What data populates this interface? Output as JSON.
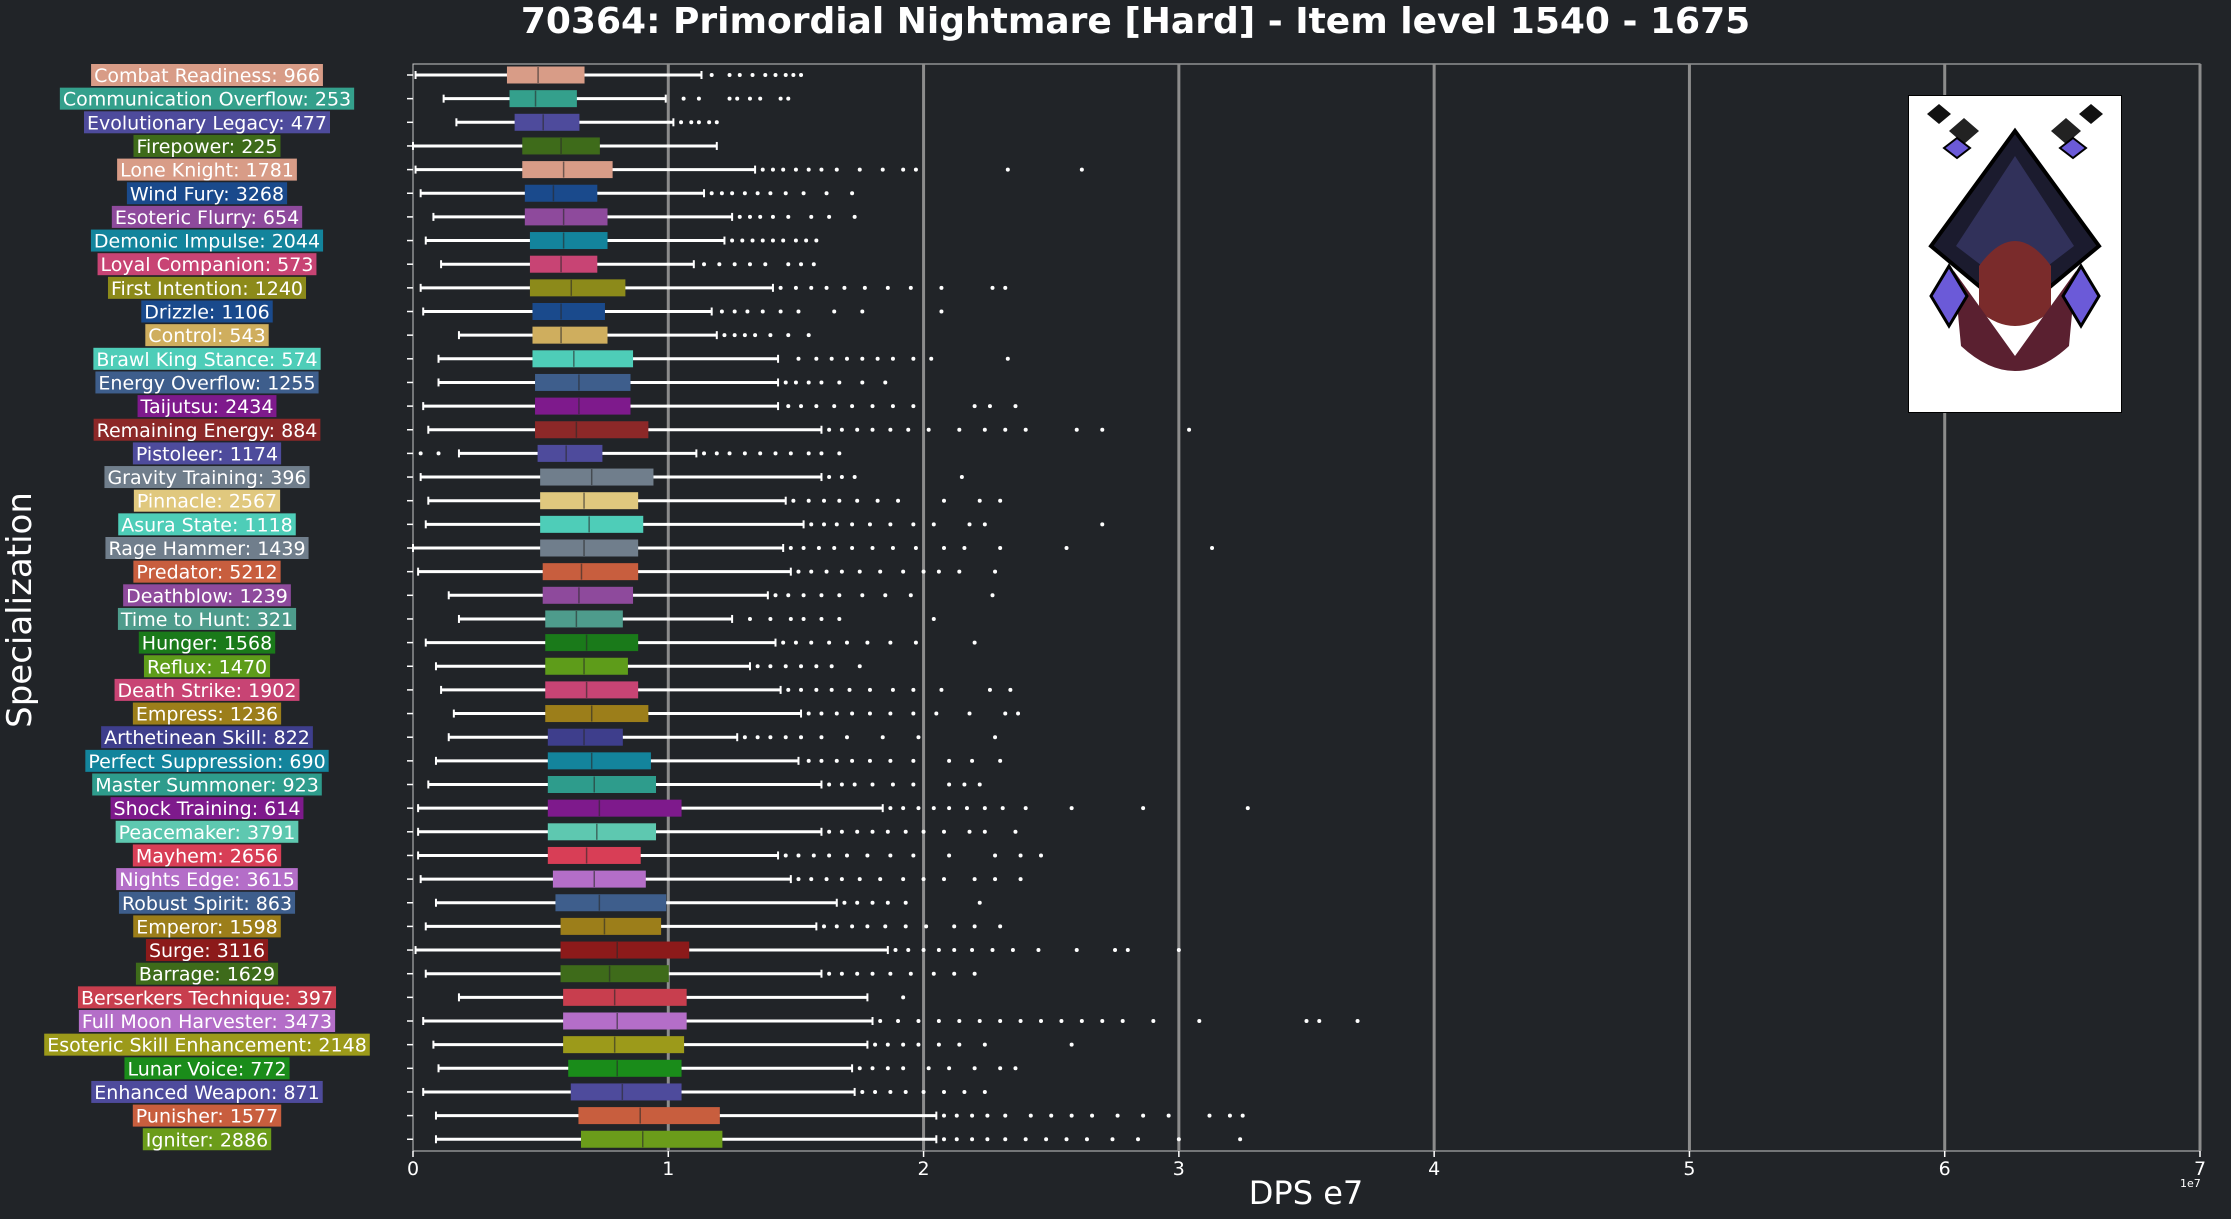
{
  "title": "70364: Primordial Nightmare [Hard] - Item level 1540 - 1675",
  "xlabel": "DPS e7",
  "ylabel": "Specialization",
  "axis_offset": "1e7",
  "colors": {
    "background": "#212428",
    "text": "#ffffff",
    "grid": "#8c8c8c"
  },
  "chart_data": {
    "type": "box",
    "orientation": "horizontal",
    "xlim": [
      0,
      7
    ],
    "xticks": [
      0,
      1,
      2,
      3,
      4,
      5,
      6,
      7
    ],
    "grid": "x-major",
    "categories": [
      {
        "label": "Combat Readiness: 966",
        "color": "#d89c87",
        "stats": [
          0.01,
          0.37,
          0.49,
          0.67,
          1.13
        ],
        "fliers": [
          1.17,
          1.24,
          1.28,
          1.33,
          1.38,
          1.42,
          1.46,
          1.49,
          1.52
        ]
      },
      {
        "label": "Communication Overflow: 253",
        "color": "#34a08c",
        "stats": [
          0.12,
          0.38,
          0.48,
          0.64,
          0.99
        ],
        "fliers": [
          1.06,
          1.12,
          1.24,
          1.27,
          1.32,
          1.36,
          1.44,
          1.47
        ]
      },
      {
        "label": "Evolutionary Legacy: 477",
        "color": "#4e4b9c",
        "stats": [
          0.17,
          0.4,
          0.51,
          0.65,
          1.02
        ],
        "fliers": [
          1.05,
          1.09,
          1.12,
          1.16,
          1.19
        ]
      },
      {
        "label": "Firepower: 225",
        "color": "#3e6b1a",
        "stats": [
          0.0,
          0.43,
          0.58,
          0.73,
          1.19
        ],
        "fliers": []
      },
      {
        "label": "Lone Knight: 1781",
        "color": "#d89c87",
        "stats": [
          0.01,
          0.43,
          0.59,
          0.78,
          1.34
        ],
        "fliers": [
          1.37,
          1.41,
          1.45,
          1.5,
          1.55,
          1.6,
          1.66,
          1.75,
          1.84,
          1.92,
          1.97,
          2.33,
          2.62
        ]
      },
      {
        "label": "Wind Fury: 3268",
        "color": "#1a4a8c",
        "stats": [
          0.03,
          0.44,
          0.55,
          0.72,
          1.14
        ],
        "fliers": [
          1.17,
          1.21,
          1.25,
          1.3,
          1.35,
          1.4,
          1.46,
          1.53,
          1.62,
          1.72
        ]
      },
      {
        "label": "Esoteric Flurry: 654",
        "color": "#8e4a9c",
        "stats": [
          0.08,
          0.44,
          0.59,
          0.76,
          1.25
        ],
        "fliers": [
          1.28,
          1.32,
          1.36,
          1.41,
          1.47,
          1.56,
          1.63,
          1.73
        ]
      },
      {
        "label": "Demonic Impulse: 2044",
        "color": "#13849c",
        "stats": [
          0.05,
          0.46,
          0.59,
          0.76,
          1.22
        ],
        "fliers": [
          1.25,
          1.29,
          1.33,
          1.37,
          1.41,
          1.45,
          1.5,
          1.54,
          1.58
        ]
      },
      {
        "label": "Loyal Companion: 573",
        "color": "#c84474",
        "stats": [
          0.11,
          0.46,
          0.58,
          0.72,
          1.1
        ],
        "fliers": [
          1.14,
          1.2,
          1.26,
          1.32,
          1.38,
          1.47,
          1.52,
          1.57
        ]
      },
      {
        "label": "First Intention: 1240",
        "color": "#8c8a1a",
        "stats": [
          0.03,
          0.46,
          0.62,
          0.83,
          1.41
        ],
        "fliers": [
          1.44,
          1.5,
          1.56,
          1.62,
          1.69,
          1.77,
          1.86,
          1.95,
          2.07,
          2.27,
          2.32
        ]
      },
      {
        "label": "Drizzle: 1106",
        "color": "#1a4a8c",
        "stats": [
          0.04,
          0.47,
          0.58,
          0.75,
          1.17
        ],
        "fliers": [
          1.21,
          1.26,
          1.31,
          1.37,
          1.44,
          1.51,
          1.65,
          1.76,
          2.07
        ]
      },
      {
        "label": "Control: 543",
        "color": "#cfae5e",
        "stats": [
          0.18,
          0.47,
          0.58,
          0.76,
          1.19
        ],
        "fliers": [
          1.22,
          1.26,
          1.3,
          1.34,
          1.4,
          1.47,
          1.55
        ]
      },
      {
        "label": "Brawl King Stance: 574",
        "color": "#4ecdb8",
        "stats": [
          0.1,
          0.47,
          0.63,
          0.86,
          1.43
        ],
        "fliers": [
          1.51,
          1.58,
          1.64,
          1.7,
          1.76,
          1.82,
          1.88,
          1.96,
          2.03,
          2.33
        ]
      },
      {
        "label": "Energy Overflow: 1255",
        "color": "#3e5e8c",
        "stats": [
          0.1,
          0.48,
          0.65,
          0.85,
          1.43
        ],
        "fliers": [
          1.46,
          1.5,
          1.55,
          1.6,
          1.67,
          1.76,
          1.85
        ]
      },
      {
        "label": "Taijutsu: 2434",
        "color": "#7e1a8c",
        "stats": [
          0.04,
          0.48,
          0.65,
          0.85,
          1.43
        ],
        "fliers": [
          1.47,
          1.52,
          1.58,
          1.65,
          1.72,
          1.8,
          1.88,
          1.96,
          2.2,
          2.26,
          2.36
        ]
      },
      {
        "label": "Remaining Energy: 884",
        "color": "#8c2828",
        "stats": [
          0.06,
          0.48,
          0.64,
          0.92,
          1.6
        ],
        "fliers": [
          1.63,
          1.68,
          1.74,
          1.8,
          1.87,
          1.94,
          2.02,
          2.14,
          2.24,
          2.32,
          2.4,
          2.6,
          2.7,
          3.04
        ]
      },
      {
        "label": "Pistoleer: 1174",
        "color": "#4e4b9c",
        "stats": [
          0.18,
          0.49,
          0.6,
          0.74,
          1.11
        ],
        "fliers": [
          0.03,
          0.1,
          1.14,
          1.19,
          1.24,
          1.3,
          1.36,
          1.42,
          1.48,
          1.55,
          1.6,
          1.67
        ]
      },
      {
        "label": "Gravity Training: 396",
        "color": "#707e8c",
        "stats": [
          0.03,
          0.5,
          0.7,
          0.94,
          1.6
        ],
        "fliers": [
          1.63,
          1.68,
          1.73,
          2.15
        ]
      },
      {
        "label": "Pinnacle: 2567",
        "color": "#e0c87e",
        "stats": [
          0.06,
          0.5,
          0.67,
          0.88,
          1.46
        ],
        "fliers": [
          1.49,
          1.55,
          1.61,
          1.67,
          1.74,
          1.82,
          1.9,
          2.08,
          2.22,
          2.3
        ]
      },
      {
        "label": "Asura State: 1118",
        "color": "#4ecdb8",
        "stats": [
          0.05,
          0.5,
          0.69,
          0.9,
          1.53
        ],
        "fliers": [
          1.56,
          1.61,
          1.66,
          1.72,
          1.79,
          1.87,
          1.96,
          2.04,
          2.18,
          2.24,
          2.7
        ]
      },
      {
        "label": "Rage Hammer: 1439",
        "color": "#707e8c",
        "stats": [
          0.0,
          0.5,
          0.67,
          0.88,
          1.45
        ],
        "fliers": [
          1.48,
          1.53,
          1.59,
          1.65,
          1.72,
          1.8,
          1.88,
          1.97,
          2.08,
          2.16,
          2.3,
          2.56,
          3.13
        ]
      },
      {
        "label": "Predator: 5212",
        "color": "#c85e3e",
        "stats": [
          0.02,
          0.51,
          0.66,
          0.88,
          1.48
        ],
        "fliers": [
          1.51,
          1.56,
          1.62,
          1.68,
          1.75,
          1.83,
          1.92,
          2.0,
          2.06,
          2.14,
          2.28
        ]
      },
      {
        "label": "Deathblow: 1239",
        "color": "#8e4a9c",
        "stats": [
          0.14,
          0.51,
          0.65,
          0.86,
          1.39
        ],
        "fliers": [
          1.42,
          1.47,
          1.53,
          1.6,
          1.67,
          1.76,
          1.85,
          1.95,
          2.27
        ]
      },
      {
        "label": "Time to Hunt: 321",
        "color": "#4e9c8c",
        "stats": [
          0.18,
          0.52,
          0.64,
          0.82,
          1.25
        ],
        "fliers": [
          1.32,
          1.4,
          1.48,
          1.53,
          1.6,
          1.67,
          2.04
        ]
      },
      {
        "label": "Hunger: 1568",
        "color": "#1a7a1a",
        "stats": [
          0.05,
          0.52,
          0.68,
          0.88,
          1.42
        ],
        "fliers": [
          1.45,
          1.5,
          1.56,
          1.63,
          1.7,
          1.78,
          1.87,
          1.97,
          2.2
        ]
      },
      {
        "label": "Reflux: 1470",
        "color": "#5e9c1a",
        "stats": [
          0.09,
          0.52,
          0.67,
          0.84,
          1.32
        ],
        "fliers": [
          1.35,
          1.4,
          1.46,
          1.52,
          1.58,
          1.64,
          1.75
        ]
      },
      {
        "label": "Death Strike: 1902",
        "color": "#c84474",
        "stats": [
          0.11,
          0.52,
          0.68,
          0.88,
          1.44
        ],
        "fliers": [
          1.47,
          1.52,
          1.58,
          1.64,
          1.71,
          1.79,
          1.88,
          1.96,
          2.07,
          2.26,
          2.34
        ]
      },
      {
        "label": "Empress: 1236",
        "color": "#9c7e1a",
        "stats": [
          0.16,
          0.52,
          0.7,
          0.92,
          1.52
        ],
        "fliers": [
          1.55,
          1.6,
          1.66,
          1.72,
          1.79,
          1.87,
          1.96,
          2.05,
          2.18,
          2.32,
          2.37
        ]
      },
      {
        "label": "Arthetinean Skill: 822",
        "color": "#3e3e8c",
        "stats": [
          0.14,
          0.53,
          0.67,
          0.82,
          1.27
        ],
        "fliers": [
          1.3,
          1.35,
          1.4,
          1.46,
          1.52,
          1.6,
          1.7,
          1.84,
          1.98,
          2.28
        ]
      },
      {
        "label": "Perfect Suppression: 690",
        "color": "#13849c",
        "stats": [
          0.09,
          0.53,
          0.7,
          0.93,
          1.51
        ],
        "fliers": [
          1.55,
          1.6,
          1.66,
          1.72,
          1.79,
          1.87,
          1.96,
          2.1,
          2.19,
          2.3
        ]
      },
      {
        "label": "Master Summoner: 923",
        "color": "#2e9c8c",
        "stats": [
          0.06,
          0.53,
          0.71,
          0.95,
          1.6
        ],
        "fliers": [
          1.63,
          1.68,
          1.73,
          1.8,
          1.88,
          1.96,
          2.1,
          2.16,
          2.22
        ]
      },
      {
        "label": "Shock Training: 614",
        "color": "#7e1a8c",
        "stats": [
          0.02,
          0.53,
          0.73,
          1.05,
          1.84
        ],
        "fliers": [
          1.87,
          1.92,
          1.98,
          2.04,
          2.1,
          2.17,
          2.24,
          2.31,
          2.4,
          2.58,
          2.86,
          3.27
        ]
      },
      {
        "label": "Peacemaker: 3791",
        "color": "#5ec8b0",
        "stats": [
          0.02,
          0.53,
          0.72,
          0.95,
          1.6
        ],
        "fliers": [
          1.63,
          1.68,
          1.74,
          1.8,
          1.86,
          1.93,
          2.0,
          2.08,
          2.18,
          2.24,
          2.36
        ]
      },
      {
        "label": "Mayhem: 2656",
        "color": "#d83e56",
        "stats": [
          0.02,
          0.53,
          0.68,
          0.89,
          1.43
        ],
        "fliers": [
          1.46,
          1.51,
          1.57,
          1.63,
          1.7,
          1.78,
          1.87,
          1.96,
          2.1,
          2.28,
          2.38,
          2.46
        ]
      },
      {
        "label": "Nights Edge: 3615",
        "color": "#b46ec8",
        "stats": [
          0.03,
          0.55,
          0.71,
          0.91,
          1.48
        ],
        "fliers": [
          1.51,
          1.56,
          1.62,
          1.68,
          1.75,
          1.83,
          1.92,
          2.0,
          2.08,
          2.2,
          2.28,
          2.38
        ]
      },
      {
        "label": "Robust Spirit: 863",
        "color": "#3e5e8c",
        "stats": [
          0.09,
          0.56,
          0.73,
          0.99,
          1.66
        ],
        "fliers": [
          1.69,
          1.74,
          1.8,
          1.86,
          1.93,
          2.22
        ]
      },
      {
        "label": "Emperor: 1598",
        "color": "#9c7e1a",
        "stats": [
          0.05,
          0.58,
          0.75,
          0.97,
          1.58
        ],
        "fliers": [
          1.61,
          1.66,
          1.72,
          1.78,
          1.85,
          1.93,
          2.01,
          2.12,
          2.2,
          2.3
        ]
      },
      {
        "label": "Surge: 3116",
        "color": "#8c1a1a",
        "stats": [
          0.01,
          0.58,
          0.8,
          1.08,
          1.86
        ],
        "fliers": [
          1.89,
          1.94,
          2.0,
          2.06,
          2.12,
          2.19,
          2.27,
          2.35,
          2.45,
          2.6,
          2.75,
          2.8,
          3.0
        ]
      },
      {
        "label": "Barrage: 1629",
        "color": "#3e6b1a",
        "stats": [
          0.05,
          0.58,
          0.77,
          1.0,
          1.6
        ],
        "fliers": [
          1.63,
          1.68,
          1.74,
          1.8,
          1.87,
          1.95,
          2.04,
          2.12,
          2.2
        ]
      },
      {
        "label": "Berserkers Technique: 397",
        "color": "#c83e4e",
        "stats": [
          0.18,
          0.59,
          0.79,
          1.07,
          1.78
        ],
        "fliers": [
          1.92
        ]
      },
      {
        "label": "Full Moon Harvester: 3473",
        "color": "#b46ec8",
        "stats": [
          0.04,
          0.59,
          0.8,
          1.07,
          1.8
        ],
        "fliers": [
          1.83,
          1.9,
          1.98,
          2.06,
          2.14,
          2.22,
          2.3,
          2.38,
          2.46,
          2.54,
          2.62,
          2.7,
          2.78,
          2.9,
          3.08,
          3.5,
          3.55,
          3.7
        ]
      },
      {
        "label": "Esoteric Skill Enhancement: 2148",
        "color": "#9c9a1a",
        "stats": [
          0.08,
          0.59,
          0.79,
          1.06,
          1.78
        ],
        "fliers": [
          1.81,
          1.86,
          1.92,
          1.98,
          2.06,
          2.14,
          2.24,
          2.58
        ]
      },
      {
        "label": "Lunar Voice: 772",
        "color": "#1a8c1a",
        "stats": [
          0.1,
          0.61,
          0.8,
          1.05,
          1.72
        ],
        "fliers": [
          1.75,
          1.8,
          1.86,
          1.92,
          2.02,
          2.1,
          2.2,
          2.3,
          2.36
        ]
      },
      {
        "label": "Enhanced Weapon: 871",
        "color": "#4e4b9c",
        "stats": [
          0.04,
          0.62,
          0.82,
          1.05,
          1.73
        ],
        "fliers": [
          1.76,
          1.81,
          1.87,
          1.93,
          2.0,
          2.08,
          2.16,
          2.24
        ]
      },
      {
        "label": "Punisher: 1577",
        "color": "#c85e3e",
        "stats": [
          0.09,
          0.65,
          0.89,
          1.2,
          2.05
        ],
        "fliers": [
          2.08,
          2.13,
          2.19,
          2.25,
          2.32,
          2.42,
          2.5,
          2.58,
          2.66,
          2.76,
          2.86,
          2.96,
          3.12,
          3.2,
          3.25
        ]
      },
      {
        "label": "Igniter: 2886",
        "color": "#6b9c1a",
        "stats": [
          0.09,
          0.66,
          0.9,
          1.21,
          2.05
        ],
        "fliers": [
          2.08,
          2.13,
          2.19,
          2.25,
          2.32,
          2.4,
          2.48,
          2.56,
          2.64,
          2.74,
          2.84,
          3.0,
          3.24
        ]
      }
    ]
  }
}
